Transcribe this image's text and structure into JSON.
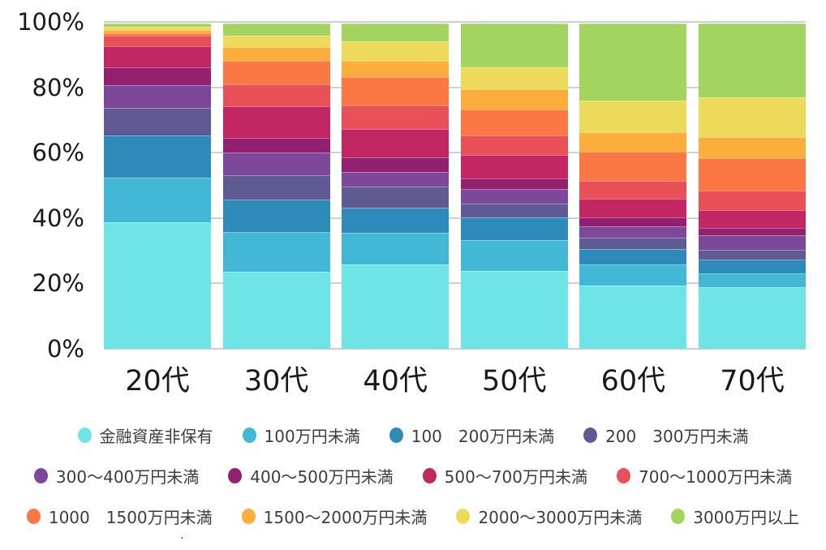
{
  "chart_data": {
    "type": "bar",
    "variant": "stacked-percent-column",
    "title": "",
    "xlabel": "",
    "ylabel": "",
    "ylim": [
      0,
      100
    ],
    "grid": true,
    "legend_position": "bottom",
    "y_ticks": [
      "100%",
      "80%",
      "60%",
      "40%",
      "20%",
      "0%"
    ],
    "categories": [
      "20代",
      "30代",
      "40代",
      "50代",
      "60代",
      "70代"
    ],
    "series": [
      {
        "name": "金融資産非保有",
        "color": "#6fe4e7",
        "values": [
          38.8,
          23.7,
          26.0,
          23.9,
          19.4,
          19.0
        ]
      },
      {
        "name": "100万円未満",
        "color": "#42b8d6",
        "values": [
          13.9,
          12.2,
          9.7,
          9.6,
          6.6,
          4.2
        ]
      },
      {
        "name": "100　200万円未満",
        "color": "#2e8ab8",
        "values": [
          12.8,
          10.0,
          7.7,
          6.9,
          4.7,
          4.2
        ]
      },
      {
        "name": "200　300万円未満",
        "color": "#5f5b92",
        "values": [
          8.6,
          7.5,
          6.5,
          4.1,
          3.5,
          3.1
        ]
      },
      {
        "name": "300〜400万円未満",
        "color": "#7d4899",
        "values": [
          6.9,
          7.0,
          4.5,
          4.5,
          3.5,
          4.5
        ]
      },
      {
        "name": "400〜500万円未満",
        "color": "#93206f",
        "values": [
          5.5,
          4.5,
          4.5,
          3.3,
          2.7,
          2.1
        ]
      },
      {
        "name": "500〜700万円未満",
        "color": "#c32763",
        "values": [
          6.4,
          9.7,
          8.7,
          7.2,
          5.8,
          5.5
        ]
      },
      {
        "name": "700〜1000万円未満",
        "color": "#e95058",
        "values": [
          3.3,
          6.7,
          7.1,
          6.0,
          5.5,
          6.0
        ]
      },
      {
        "name": "1000　1500万円未満",
        "color": "#fb7743",
        "values": [
          0.8,
          7.3,
          8.8,
          8.1,
          9.0,
          10.1
        ]
      },
      {
        "name": "1500〜2000万円未満",
        "color": "#fcae3d",
        "values": [
          1.0,
          4.1,
          5.1,
          6.1,
          5.9,
          6.4
        ]
      },
      {
        "name": "2000〜3000万円未満",
        "color": "#ecdb5a",
        "values": [
          1.0,
          3.5,
          5.9,
          6.8,
          9.8,
          12.1
        ]
      },
      {
        "name": "3000万円以上",
        "color": "#a3d45f",
        "values": [
          1.0,
          3.8,
          5.5,
          13.5,
          23.6,
          22.8
        ]
      }
    ],
    "legend_rows": [
      [
        0,
        1,
        2,
        3
      ],
      [
        4,
        5,
        6,
        7
      ],
      [
        8,
        9,
        10,
        11
      ]
    ]
  },
  "footnote_dot": "."
}
